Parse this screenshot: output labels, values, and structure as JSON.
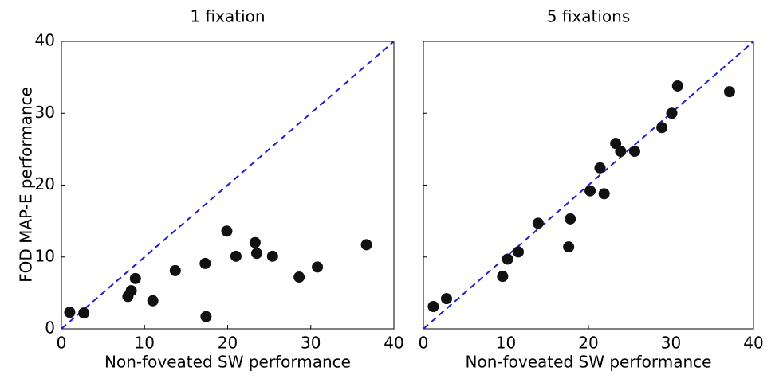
{
  "chart_data": [
    {
      "type": "scatter",
      "title": "1 fixation",
      "xlabel": "Non-foveated SW performance",
      "ylabel": "FOD MAP-E performance",
      "x": [
        1.0,
        2.7,
        8.9,
        8.4,
        8.0,
        11.0,
        13.7,
        17.3,
        17.4,
        19.9,
        21.0,
        23.3,
        23.5,
        25.4,
        28.6,
        30.8,
        36.7
      ],
      "y": [
        2.3,
        2.2,
        7.0,
        5.3,
        4.5,
        3.9,
        8.1,
        9.1,
        1.7,
        13.6,
        10.1,
        12.0,
        10.5,
        10.1,
        7.2,
        8.6,
        11.7
      ],
      "marker_color": "#111111",
      "identity_line_color": "#1f1fd0",
      "xlim": [
        0,
        40
      ],
      "ylim": [
        0,
        40
      ],
      "xticks": [
        0,
        10,
        20,
        30,
        40
      ],
      "yticks": [
        0,
        10,
        20,
        30,
        40
      ],
      "show_ytick_labels": true
    },
    {
      "type": "scatter",
      "title": "5 fixations",
      "xlabel": "Non-foveated SW performance",
      "x": [
        1.2,
        2.8,
        9.6,
        10.2,
        11.5,
        13.9,
        17.6,
        17.8,
        20.2,
        21.9,
        21.4,
        23.3,
        23.9,
        25.6,
        28.9,
        30.1,
        30.8,
        37.1
      ],
      "y": [
        3.1,
        4.2,
        7.3,
        9.7,
        10.7,
        14.7,
        11.4,
        15.3,
        19.2,
        18.8,
        22.4,
        25.8,
        24.7,
        24.7,
        28.0,
        30.0,
        33.8,
        33.0
      ],
      "marker_color": "#111111",
      "identity_line_color": "#1f1fd0",
      "xlim": [
        0,
        40
      ],
      "ylim": [
        0,
        40
      ],
      "xticks": [
        0,
        10,
        20,
        30,
        40
      ],
      "yticks": [
        0,
        10,
        20,
        30,
        40
      ],
      "show_ytick_labels": false
    }
  ]
}
